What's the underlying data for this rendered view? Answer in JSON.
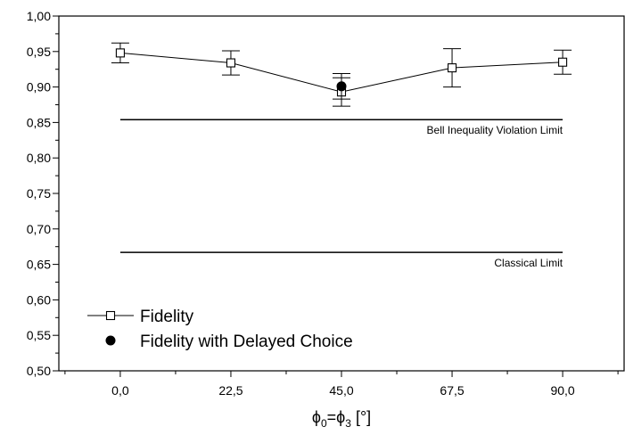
{
  "chart_data": {
    "type": "scatter",
    "xlabel": {
      "phi": "ϕ",
      "sub1": "0",
      "eq": "=",
      "sub2": "3",
      "unit": " [°]"
    },
    "ylabel": "",
    "xlim": [
      -12.5,
      102.5
    ],
    "ylim": [
      0.5,
      1.0
    ],
    "x_ticks": [
      0,
      22.5,
      45,
      67.5,
      90
    ],
    "x_tick_labels": [
      "0,0",
      "22,5",
      "45,0",
      "67,5",
      "90,0"
    ],
    "y_ticks": [
      0.5,
      0.55,
      0.6,
      0.65,
      0.7,
      0.75,
      0.8,
      0.85,
      0.9,
      0.95,
      1.0
    ],
    "y_tick_labels": [
      "0,50",
      "0,55",
      "0,60",
      "0,65",
      "0,70",
      "0,75",
      "0,80",
      "0,85",
      "0,90",
      "0,95",
      "1,00"
    ],
    "grid": false,
    "series": [
      {
        "name": "Fidelity",
        "marker": "open-square",
        "line": true,
        "color": "#000000",
        "x": [
          0,
          22.5,
          45,
          67.5,
          90
        ],
        "y": [
          0.948,
          0.934,
          0.893,
          0.927,
          0.935
        ],
        "err": [
          0.014,
          0.017,
          0.02,
          0.027,
          0.017
        ]
      },
      {
        "name": "Fidelity with Delayed Choice",
        "marker": "filled-circle",
        "line": false,
        "color": "#000000",
        "x": [
          45
        ],
        "y": [
          0.901
        ],
        "err": [
          0.018
        ]
      }
    ],
    "reference_lines": [
      {
        "label": "Bell Inequality Violation Limit",
        "y": 0.854,
        "x_range": [
          0,
          90
        ]
      },
      {
        "label": "Classical Limit",
        "y": 0.667,
        "x_range": [
          0,
          90
        ]
      }
    ],
    "legend_position": "bottom-left"
  }
}
